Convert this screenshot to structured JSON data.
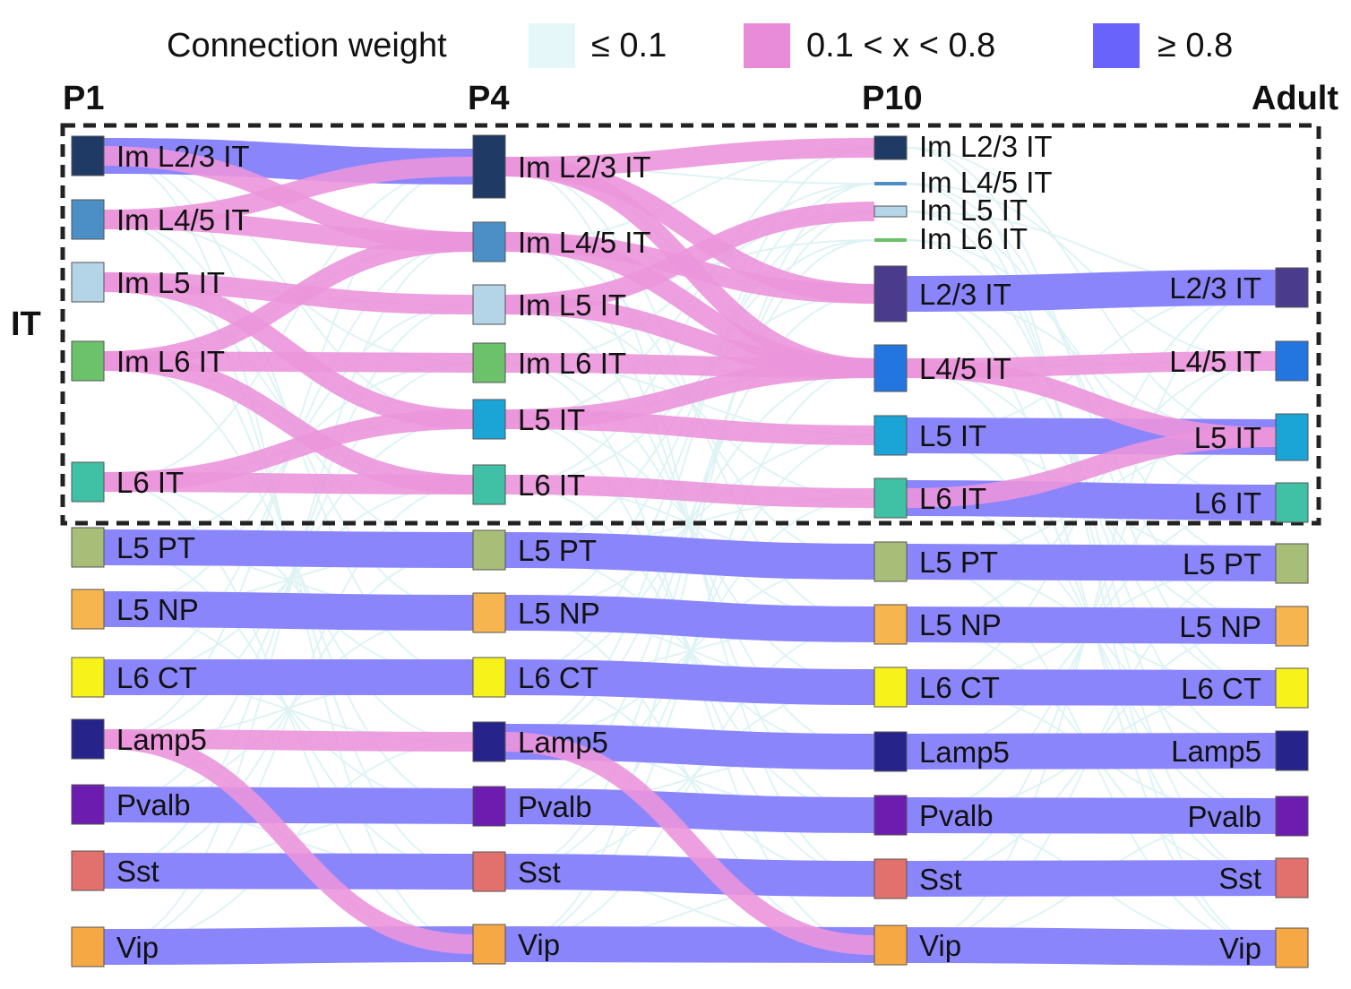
{
  "legend": {
    "title": "Connection weight",
    "items": [
      {
        "label": "≤ 0.1",
        "color": "#e6f7f9"
      },
      {
        "label": "0.1 < x < 0.8",
        "color": "#e88bd8"
      },
      {
        "label": "≥ 0.8",
        "color": "#6a63fb"
      }
    ]
  },
  "group_label": "IT",
  "stages": [
    "P1",
    "P4",
    "P10",
    "Adult"
  ],
  "colors": {
    "ImL23": "#1f3a64",
    "ImL45": "#4b8fc6",
    "ImL5": "#b4d4e8",
    "ImL6": "#6cc26a",
    "L23": "#4a3b8c",
    "L45": "#2376e0",
    "L5IT": "#1ba4d6",
    "L6IT": "#40c0a4",
    "L5PT": "#a8be78",
    "L5NP": "#f6b54e",
    "L6CT": "#f7f21a",
    "Lamp5": "#26238a",
    "Pvalb": "#6d1cb0",
    "Sst": "#e2706c",
    "Vip": "#f6a844",
    "weak": "#dff3f5",
    "mid": "#eb95dc",
    "strong": "#8b85fb"
  },
  "nodes": {
    "P1": [
      {
        "id": "ImL23",
        "label": "Im L2/3 IT"
      },
      {
        "id": "ImL45",
        "label": "Im L4/5 IT"
      },
      {
        "id": "ImL5",
        "label": "Im L5 IT"
      },
      {
        "id": "ImL6",
        "label": "Im L6 IT"
      },
      {
        "id": "L6IT",
        "label": "L6 IT"
      },
      {
        "id": "L5PT",
        "label": "L5 PT"
      },
      {
        "id": "L5NP",
        "label": "L5 NP"
      },
      {
        "id": "L6CT",
        "label": "L6 CT"
      },
      {
        "id": "Lamp5",
        "label": "Lamp5"
      },
      {
        "id": "Pvalb",
        "label": "Pvalb"
      },
      {
        "id": "Sst",
        "label": "Sst"
      },
      {
        "id": "Vip",
        "label": "Vip"
      }
    ],
    "P4": [
      {
        "id": "ImL23",
        "label": "Im L2/3 IT"
      },
      {
        "id": "ImL45",
        "label": "Im L4/5 IT"
      },
      {
        "id": "ImL5",
        "label": "Im L5 IT"
      },
      {
        "id": "ImL6",
        "label": "Im L6 IT"
      },
      {
        "id": "L5IT",
        "label": "L5 IT"
      },
      {
        "id": "L6IT",
        "label": "L6 IT"
      },
      {
        "id": "L5PT",
        "label": "L5 PT"
      },
      {
        "id": "L5NP",
        "label": "L5 NP"
      },
      {
        "id": "L6CT",
        "label": "L6 CT"
      },
      {
        "id": "Lamp5",
        "label": "Lamp5"
      },
      {
        "id": "Pvalb",
        "label": "Pvalb"
      },
      {
        "id": "Sst",
        "label": "Sst"
      },
      {
        "id": "Vip",
        "label": "Vip"
      }
    ],
    "P10": [
      {
        "id": "ImL23",
        "label": "Im L2/3 IT"
      },
      {
        "id": "ImL45",
        "label": "Im L4/5 IT"
      },
      {
        "id": "ImL5",
        "label": "Im L5 IT"
      },
      {
        "id": "ImL6",
        "label": "Im L6 IT"
      },
      {
        "id": "L23",
        "label": "L2/3 IT"
      },
      {
        "id": "L45",
        "label": "L4/5 IT"
      },
      {
        "id": "L5IT",
        "label": "L5 IT"
      },
      {
        "id": "L6IT",
        "label": "L6 IT"
      },
      {
        "id": "L5PT",
        "label": "L5 PT"
      },
      {
        "id": "L5NP",
        "label": "L5 NP"
      },
      {
        "id": "L6CT",
        "label": "L6 CT"
      },
      {
        "id": "Lamp5",
        "label": "Lamp5"
      },
      {
        "id": "Pvalb",
        "label": "Pvalb"
      },
      {
        "id": "Sst",
        "label": "Sst"
      },
      {
        "id": "Vip",
        "label": "Vip"
      }
    ],
    "Adult": [
      {
        "id": "L23",
        "label": "L2/3 IT"
      },
      {
        "id": "L45",
        "label": "L4/5 IT"
      },
      {
        "id": "L5IT",
        "label": "L5 IT"
      },
      {
        "id": "L6IT",
        "label": "L6 IT"
      },
      {
        "id": "L5PT",
        "label": "L5 PT"
      },
      {
        "id": "L5NP",
        "label": "L5 NP"
      },
      {
        "id": "L6CT",
        "label": "L6 CT"
      },
      {
        "id": "Lamp5",
        "label": "Lamp5"
      },
      {
        "id": "Pvalb",
        "label": "Pvalb"
      },
      {
        "id": "Sst",
        "label": "Sst"
      },
      {
        "id": "Vip",
        "label": "Vip"
      }
    ]
  },
  "links": [
    {
      "stage": 0,
      "from": "ImL23",
      "to": "ImL23",
      "w": "strong"
    },
    {
      "stage": 0,
      "from": "ImL23",
      "to": "ImL45",
      "w": "mid"
    },
    {
      "stage": 0,
      "from": "ImL45",
      "to": "ImL23",
      "w": "mid"
    },
    {
      "stage": 0,
      "from": "ImL45",
      "to": "ImL45",
      "w": "mid"
    },
    {
      "stage": 0,
      "from": "ImL5",
      "to": "ImL5",
      "w": "mid"
    },
    {
      "stage": 0,
      "from": "ImL5",
      "to": "L5IT",
      "w": "mid"
    },
    {
      "stage": 0,
      "from": "ImL6",
      "to": "ImL6",
      "w": "mid"
    },
    {
      "stage": 0,
      "from": "ImL6",
      "to": "ImL45",
      "w": "mid"
    },
    {
      "stage": 0,
      "from": "ImL6",
      "to": "L6IT",
      "w": "mid"
    },
    {
      "stage": 0,
      "from": "L6IT",
      "to": "L6IT",
      "w": "mid"
    },
    {
      "stage": 0,
      "from": "L6IT",
      "to": "L5IT",
      "w": "mid"
    },
    {
      "stage": 0,
      "from": "L5PT",
      "to": "L5PT",
      "w": "strong"
    },
    {
      "stage": 0,
      "from": "L5NP",
      "to": "L5NP",
      "w": "strong"
    },
    {
      "stage": 0,
      "from": "L6CT",
      "to": "L6CT",
      "w": "strong"
    },
    {
      "stage": 0,
      "from": "Lamp5",
      "to": "Lamp5",
      "w": "mid"
    },
    {
      "stage": 0,
      "from": "Lamp5",
      "to": "Vip",
      "w": "mid"
    },
    {
      "stage": 0,
      "from": "Pvalb",
      "to": "Pvalb",
      "w": "strong"
    },
    {
      "stage": 0,
      "from": "Sst",
      "to": "Sst",
      "w": "strong"
    },
    {
      "stage": 0,
      "from": "Vip",
      "to": "Vip",
      "w": "strong"
    },
    {
      "stage": 1,
      "from": "ImL23",
      "to": "ImL23",
      "w": "mid"
    },
    {
      "stage": 1,
      "from": "ImL23",
      "to": "L23",
      "w": "mid"
    },
    {
      "stage": 1,
      "from": "ImL23",
      "to": "L45",
      "w": "mid"
    },
    {
      "stage": 1,
      "from": "ImL45",
      "to": "L23",
      "w": "mid"
    },
    {
      "stage": 1,
      "from": "ImL45",
      "to": "L45",
      "w": "mid"
    },
    {
      "stage": 1,
      "from": "ImL5",
      "to": "L45",
      "w": "mid"
    },
    {
      "stage": 1,
      "from": "ImL5",
      "to": "ImL5",
      "w": "mid"
    },
    {
      "stage": 1,
      "from": "ImL6",
      "to": "L45",
      "w": "mid"
    },
    {
      "stage": 1,
      "from": "L5IT",
      "to": "L5IT",
      "w": "mid"
    },
    {
      "stage": 1,
      "from": "L5IT",
      "to": "L45",
      "w": "mid"
    },
    {
      "stage": 1,
      "from": "L6IT",
      "to": "L6IT",
      "w": "mid"
    },
    {
      "stage": 1,
      "from": "L5PT",
      "to": "L5PT",
      "w": "strong"
    },
    {
      "stage": 1,
      "from": "L5NP",
      "to": "L5NP",
      "w": "strong"
    },
    {
      "stage": 1,
      "from": "L6CT",
      "to": "L6CT",
      "w": "strong"
    },
    {
      "stage": 1,
      "from": "Lamp5",
      "to": "Lamp5",
      "w": "strong"
    },
    {
      "stage": 1,
      "from": "Lamp5",
      "to": "Vip",
      "w": "mid"
    },
    {
      "stage": 1,
      "from": "Pvalb",
      "to": "Pvalb",
      "w": "strong"
    },
    {
      "stage": 1,
      "from": "Sst",
      "to": "Sst",
      "w": "strong"
    },
    {
      "stage": 1,
      "from": "Vip",
      "to": "Vip",
      "w": "strong"
    },
    {
      "stage": 2,
      "from": "L23",
      "to": "L23",
      "w": "strong"
    },
    {
      "stage": 2,
      "from": "L45",
      "to": "L45",
      "w": "mid"
    },
    {
      "stage": 2,
      "from": "L45",
      "to": "L5IT",
      "w": "mid"
    },
    {
      "stage": 2,
      "from": "L5IT",
      "to": "L5IT",
      "w": "strong"
    },
    {
      "stage": 2,
      "from": "L6IT",
      "to": "L6IT",
      "w": "strong"
    },
    {
      "stage": 2,
      "from": "L6IT",
      "to": "L5IT",
      "w": "mid"
    },
    {
      "stage": 2,
      "from": "L5PT",
      "to": "L5PT",
      "w": "strong"
    },
    {
      "stage": 2,
      "from": "L5NP",
      "to": "L5NP",
      "w": "strong"
    },
    {
      "stage": 2,
      "from": "L6CT",
      "to": "L6CT",
      "w": "strong"
    },
    {
      "stage": 2,
      "from": "Lamp5",
      "to": "Lamp5",
      "w": "strong"
    },
    {
      "stage": 2,
      "from": "Pvalb",
      "to": "Pvalb",
      "w": "strong"
    },
    {
      "stage": 2,
      "from": "Sst",
      "to": "Sst",
      "w": "strong"
    },
    {
      "stage": 2,
      "from": "Vip",
      "to": "Vip",
      "w": "strong"
    }
  ]
}
